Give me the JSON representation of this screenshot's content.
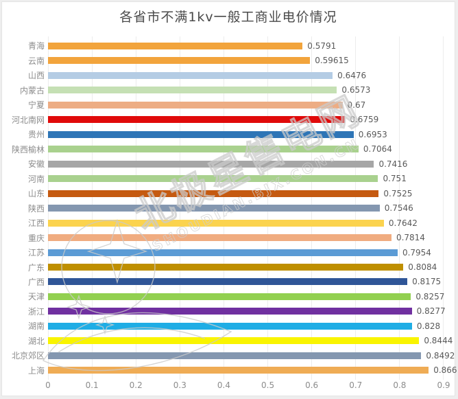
{
  "chart_data": {
    "type": "bar",
    "orientation": "horizontal",
    "title": "各省市不满1kv一般工商业电价情况",
    "xlabel": "",
    "ylabel": "",
    "xlim": [
      0,
      0.9
    ],
    "x_ticks": [
      "0",
      "0.1",
      "0.2",
      "0.3",
      "0.4",
      "0.5",
      "0.6",
      "0.7",
      "0.8",
      "0.9"
    ],
    "grid": "vertical-light",
    "legend": "none",
    "value_labels": "outside-end",
    "rows": [
      {
        "label": "青海",
        "value": 0.5791,
        "display": "0.5791",
        "color": "#F2A43C"
      },
      {
        "label": "云南",
        "value": 0.59615,
        "display": "0.59615",
        "color": "#F2A43C"
      },
      {
        "label": "山西",
        "value": 0.6476,
        "display": "0.6476",
        "color": "#B4CCE4"
      },
      {
        "label": "内蒙古",
        "value": 0.6573,
        "display": "0.6573",
        "color": "#C5E0B4"
      },
      {
        "label": "宁夏",
        "value": 0.67,
        "display": "0.67",
        "color": "#EDAD84"
      },
      {
        "label": "河北南网",
        "value": 0.6759,
        "display": "0.6759",
        "color": "#E00A0A"
      },
      {
        "label": "贵州",
        "value": 0.6953,
        "display": "0.6953",
        "color": "#2E75B6"
      },
      {
        "label": "陕西榆林",
        "value": 0.7064,
        "display": "0.7064",
        "color": "#A9D18E"
      },
      {
        "label": "安徽",
        "value": 0.7416,
        "display": "0.7416",
        "color": "#A6A6A6"
      },
      {
        "label": "河南",
        "value": 0.751,
        "display": "0.751",
        "color": "#A9D18E"
      },
      {
        "label": "山东",
        "value": 0.7525,
        "display": "0.7525",
        "color": "#C55A11"
      },
      {
        "label": "陕西",
        "value": 0.7546,
        "display": "0.7546",
        "color": "#8497B0"
      },
      {
        "label": "江西",
        "value": 0.7642,
        "display": "0.7642",
        "color": "#FBD34E"
      },
      {
        "label": "重庆",
        "value": 0.7814,
        "display": "0.7814",
        "color": "#F0AC80"
      },
      {
        "label": "江苏",
        "value": 0.7954,
        "display": "0.7954",
        "color": "#5B9BD5"
      },
      {
        "label": "广东",
        "value": 0.8084,
        "display": "0.8084",
        "color": "#BF8F00"
      },
      {
        "label": "广西",
        "value": 0.8175,
        "display": "0.8175",
        "color": "#2F5597"
      },
      {
        "label": "天津",
        "value": 0.8257,
        "display": "0.8257",
        "color": "#92D050"
      },
      {
        "label": "浙江",
        "value": 0.8277,
        "display": "0.8277",
        "color": "#7030A0"
      },
      {
        "label": "湖南",
        "value": 0.828,
        "display": "0.828",
        "color": "#1FADE5"
      },
      {
        "label": "湖北",
        "value": 0.8444,
        "display": "0.8444",
        "color": "#F9F400"
      },
      {
        "label": "北京郊区",
        "value": 0.8492,
        "display": "0.8492",
        "color": "#8497B0"
      },
      {
        "label": "上海",
        "value": 0.866,
        "display": "0.866",
        "color": "#EFAC55"
      }
    ]
  },
  "watermark": {
    "logo": "beijixing-star-logo",
    "text_cn": "北极星售电网",
    "text_en": "SHOUDIAN.BJX.CON.CN",
    "color": "#cbcbcb"
  },
  "style": {
    "title_color": "#4a4a4a",
    "label_color": "#8c8c8c",
    "value_color": "#595959",
    "gridline_color": "#ececec",
    "background": "#ffffff"
  }
}
